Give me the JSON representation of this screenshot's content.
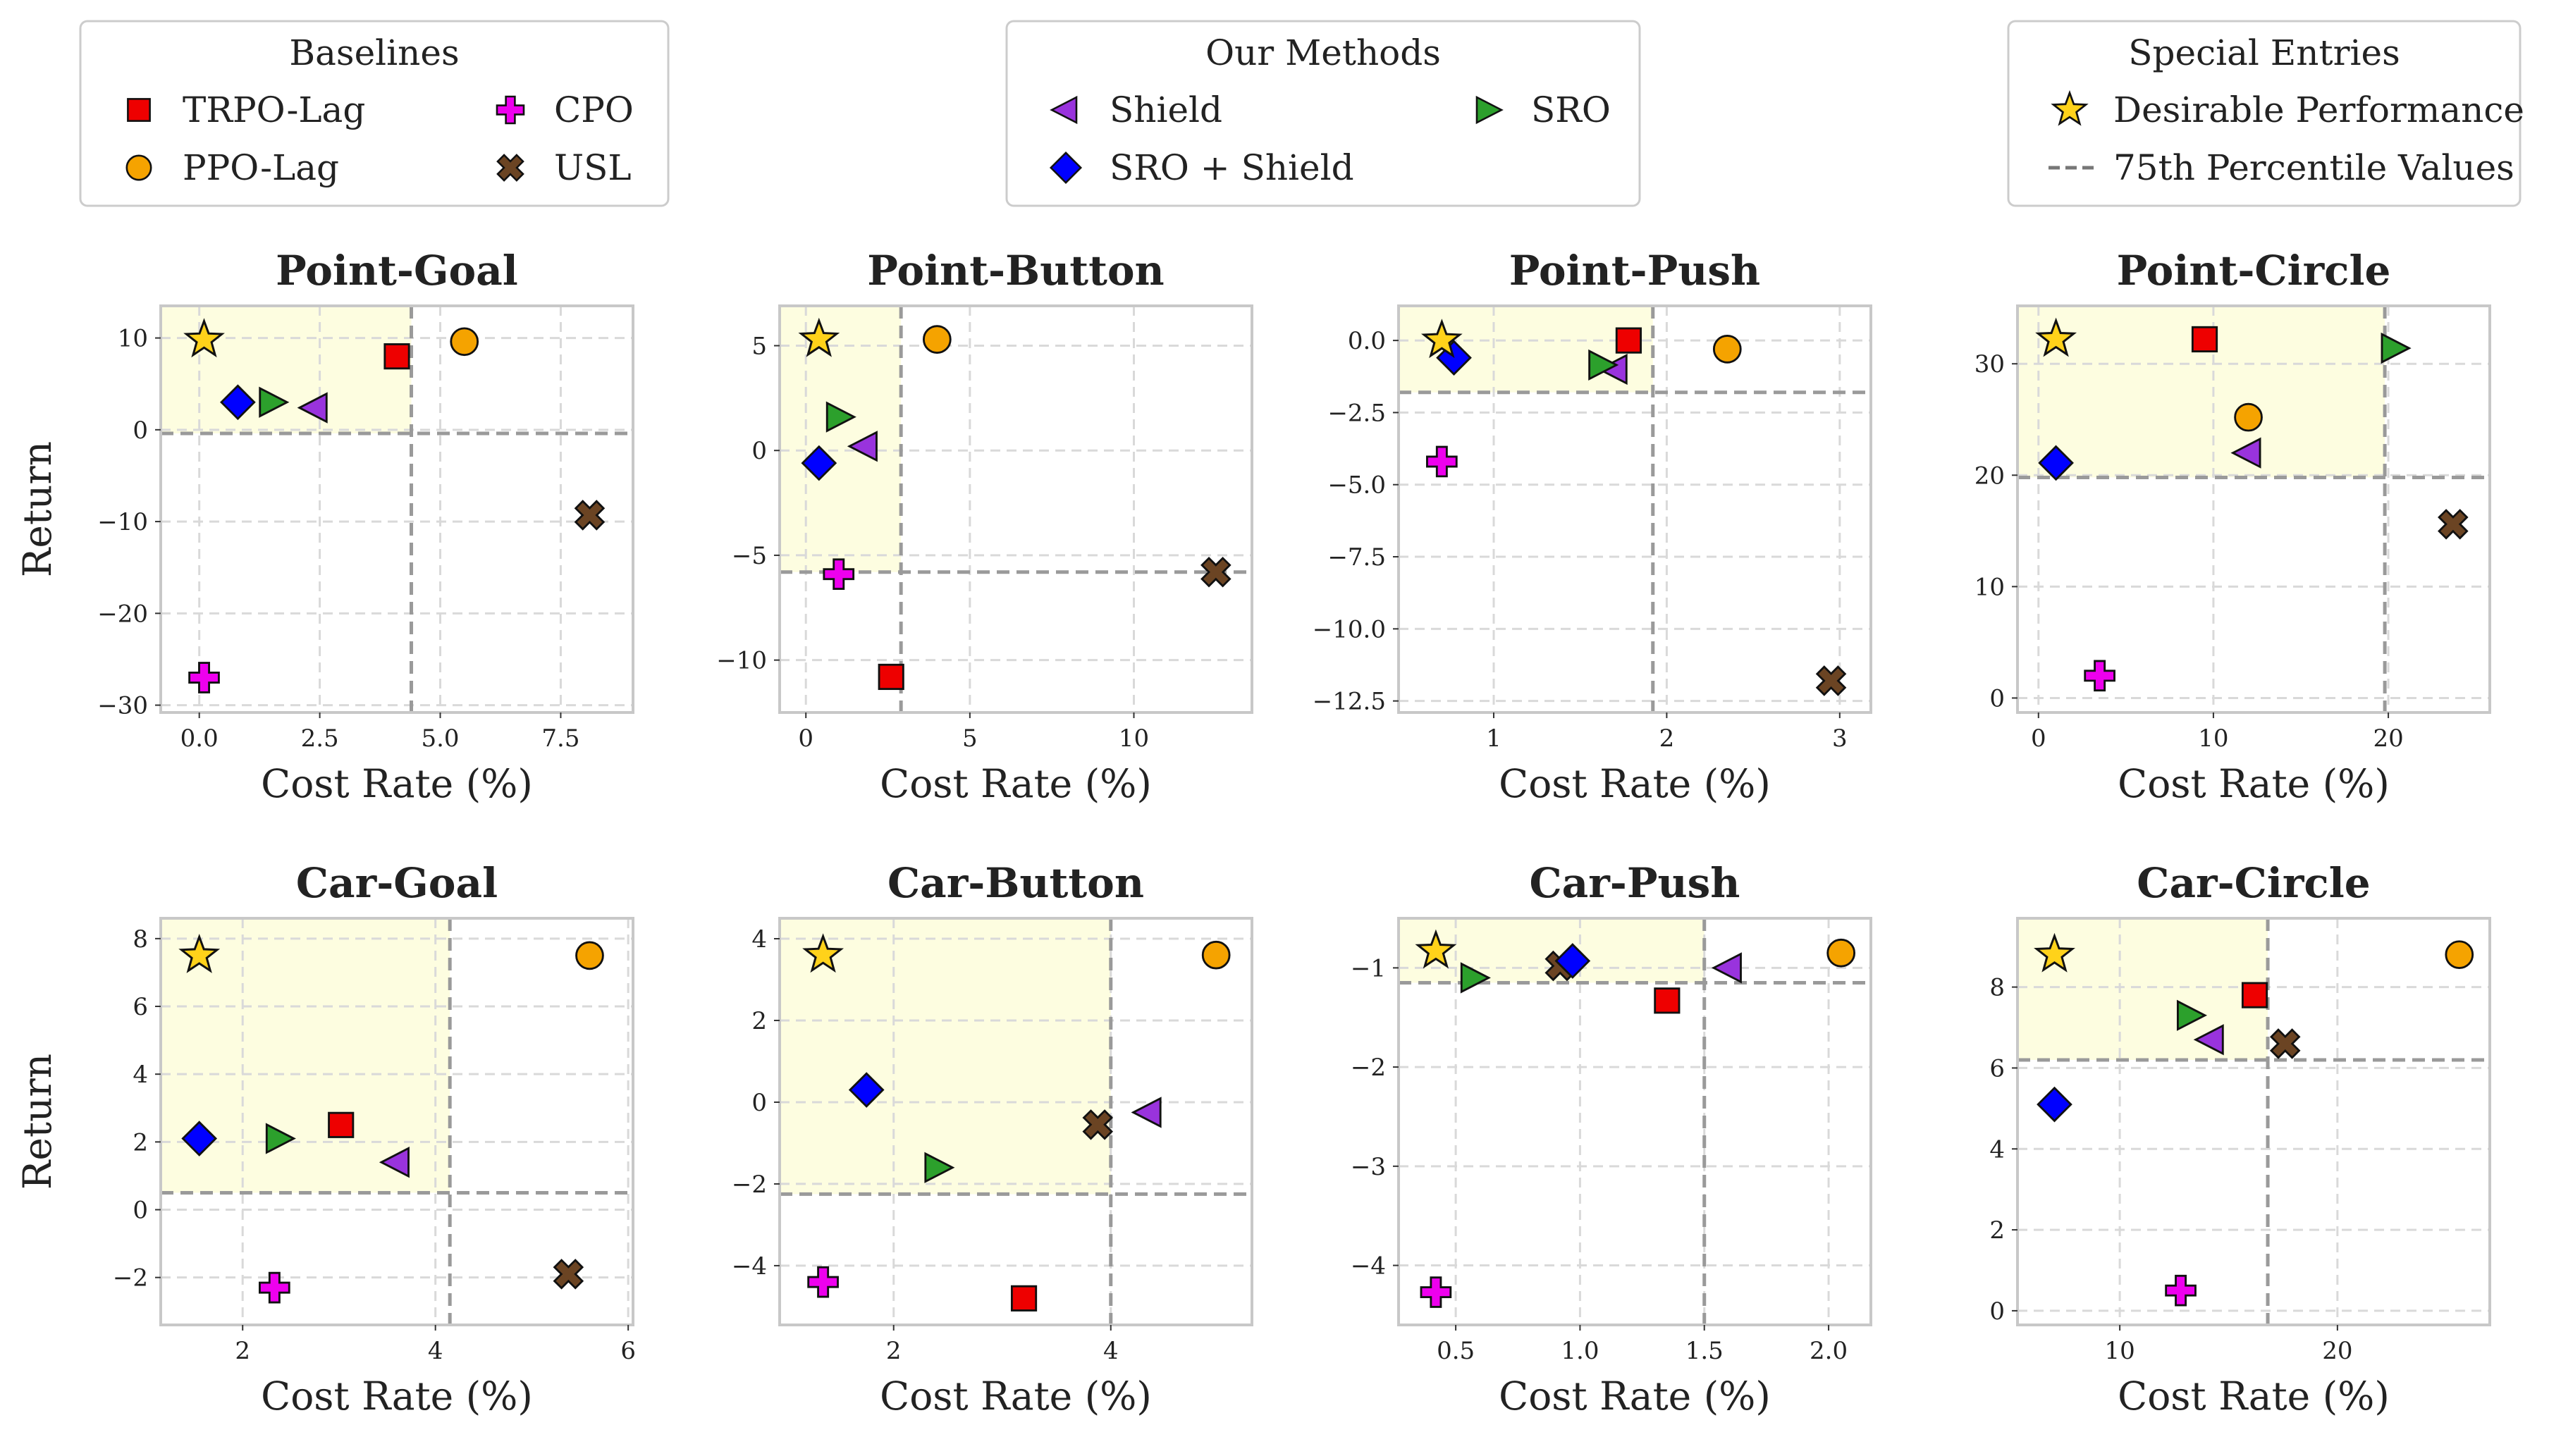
{
  "legends": {
    "baselines": {
      "title": "Baselines",
      "entries": [
        {
          "method": "trpo_lag",
          "label": "TRPO-Lag"
        },
        {
          "method": "cpo",
          "label": "CPO"
        },
        {
          "method": "ppo_lag",
          "label": "PPO-Lag"
        },
        {
          "method": "usl",
          "label": "USL"
        }
      ]
    },
    "ours": {
      "title": "Our Methods",
      "entries": [
        {
          "method": "shield",
          "label": "Shield"
        },
        {
          "method": "sro",
          "label": "SRO"
        },
        {
          "method": "sro_shield",
          "label": "SRO + Shield"
        }
      ]
    },
    "special": {
      "title": "Special Entries",
      "entries": [
        {
          "method": "desirable",
          "label": "Desirable Performance"
        },
        {
          "method": "p75",
          "label": "75th Percentile Values"
        }
      ]
    }
  },
  "styles": {
    "trpo_lag": {
      "marker": "square",
      "color": "#ee0000"
    },
    "ppo_lag": {
      "marker": "circle",
      "color": "#f5a300"
    },
    "cpo": {
      "marker": "plus",
      "color": "#ee00ee"
    },
    "usl": {
      "marker": "x",
      "color": "#6b4423"
    },
    "shield": {
      "marker": "tri-left",
      "color": "#9933dd"
    },
    "sro": {
      "marker": "tri-right",
      "color": "#2ca02c"
    },
    "sro_shield": {
      "marker": "diamond",
      "color": "#0000ff"
    },
    "desirable": {
      "marker": "star",
      "color": "#ffd21a"
    },
    "p75_line": "#9a9a9a",
    "desirable_region": "#fdfde0",
    "grid": "#d9d9d9",
    "frame": "#c8c8c8"
  },
  "chart_data": [
    {
      "type": "scatter",
      "title": "Point-Goal",
      "xlabel": "Cost Rate (%)",
      "ylabel": "Return",
      "xlim": [
        -0.8,
        9.0
      ],
      "ylim": [
        -30.8,
        13.5
      ],
      "xticks": [
        0,
        2.5,
        5,
        7.5
      ],
      "xticklabels": [
        "0.0",
        "2.5",
        "5.0",
        "7.5"
      ],
      "yticks": [
        -30,
        -20,
        -10,
        0,
        10
      ],
      "yticklabels": [
        "−30",
        "−20",
        "−10",
        "0",
        "10"
      ],
      "p75": {
        "x": 4.4,
        "y": -0.4
      },
      "points": [
        {
          "method": "desirable",
          "x": 0.1,
          "y": 9.8
        },
        {
          "method": "trpo_lag",
          "x": 4.1,
          "y": 8.0
        },
        {
          "method": "ppo_lag",
          "x": 5.5,
          "y": 9.6
        },
        {
          "method": "cpo",
          "x": 0.1,
          "y": -27.0
        },
        {
          "method": "usl",
          "x": 8.1,
          "y": -9.3
        },
        {
          "method": "shield",
          "x": 2.4,
          "y": 2.4
        },
        {
          "method": "sro",
          "x": 1.5,
          "y": 3.0
        },
        {
          "method": "sro_shield",
          "x": 0.8,
          "y": 3.0
        }
      ]
    },
    {
      "type": "scatter",
      "title": "Point-Button",
      "xlabel": "Cost Rate (%)",
      "ylabel": "",
      "xlim": [
        -0.8,
        13.6
      ],
      "ylim": [
        -12.5,
        6.9
      ],
      "xticks": [
        0,
        5,
        10
      ],
      "xticklabels": [
        "0",
        "5",
        "10"
      ],
      "yticks": [
        -10,
        -5,
        0,
        5
      ],
      "yticklabels": [
        "−10",
        "−5",
        "0",
        "5"
      ],
      "p75": {
        "x": 2.9,
        "y": -5.8
      },
      "points": [
        {
          "method": "desirable",
          "x": 0.4,
          "y": 5.3
        },
        {
          "method": "trpo_lag",
          "x": 2.6,
          "y": -10.8
        },
        {
          "method": "ppo_lag",
          "x": 4.0,
          "y": 5.3
        },
        {
          "method": "cpo",
          "x": 1.0,
          "y": -5.9
        },
        {
          "method": "usl",
          "x": 12.5,
          "y": -5.8
        },
        {
          "method": "shield",
          "x": 1.8,
          "y": 0.2
        },
        {
          "method": "sro",
          "x": 1.0,
          "y": 1.6
        },
        {
          "method": "sro_shield",
          "x": 0.4,
          "y": -0.6
        }
      ]
    },
    {
      "type": "scatter",
      "title": "Point-Push",
      "xlabel": "Cost Rate (%)",
      "ylabel": "",
      "xlim": [
        0.45,
        3.18
      ],
      "ylim": [
        -12.9,
        1.2
      ],
      "xticks": [
        1,
        2,
        3
      ],
      "xticklabels": [
        "1",
        "2",
        "3"
      ],
      "yticks": [
        -12.5,
        -10,
        -7.5,
        -5,
        -2.5,
        0
      ],
      "yticklabels": [
        "−12.5",
        "−10.0",
        "−7.5",
        "−5.0",
        "−2.5",
        "0.0"
      ],
      "p75": {
        "x": 1.92,
        "y": -1.8
      },
      "points": [
        {
          "method": "desirable",
          "x": 0.7,
          "y": 0.0
        },
        {
          "method": "trpo_lag",
          "x": 1.78,
          "y": 0.0
        },
        {
          "method": "ppo_lag",
          "x": 2.35,
          "y": -0.3
        },
        {
          "method": "cpo",
          "x": 0.7,
          "y": -4.2
        },
        {
          "method": "usl",
          "x": 2.95,
          "y": -11.8
        },
        {
          "method": "shield",
          "x": 1.7,
          "y": -1.0
        },
        {
          "method": "sro",
          "x": 1.62,
          "y": -0.85
        },
        {
          "method": "sro_shield",
          "x": 0.77,
          "y": -0.6
        }
      ]
    },
    {
      "type": "scatter",
      "title": "Point-Circle",
      "xlabel": "Cost Rate (%)",
      "ylabel": "",
      "xlim": [
        -1.2,
        25.8
      ],
      "ylim": [
        -1.3,
        35.2
      ],
      "xticks": [
        0,
        10,
        20
      ],
      "xticklabels": [
        "0",
        "10",
        "20"
      ],
      "yticks": [
        0,
        10,
        20,
        30
      ],
      "yticklabels": [
        "0",
        "10",
        "20",
        "30"
      ],
      "p75": {
        "x": 19.8,
        "y": 19.8
      },
      "points": [
        {
          "method": "desirable",
          "x": 1.0,
          "y": 32.2
        },
        {
          "method": "trpo_lag",
          "x": 9.5,
          "y": 32.2
        },
        {
          "method": "ppo_lag",
          "x": 12.0,
          "y": 25.2
        },
        {
          "method": "cpo",
          "x": 3.5,
          "y": 2.0
        },
        {
          "method": "usl",
          "x": 23.7,
          "y": 15.6
        },
        {
          "method": "shield",
          "x": 12.0,
          "y": 22.0
        },
        {
          "method": "sro",
          "x": 20.3,
          "y": 31.4
        },
        {
          "method": "sro_shield",
          "x": 1.0,
          "y": 21.1
        }
      ]
    },
    {
      "type": "scatter",
      "title": "Car-Goal",
      "xlabel": "Cost Rate (%)",
      "ylabel": "Return",
      "xlim": [
        1.15,
        6.05
      ],
      "ylim": [
        -3.4,
        8.6
      ],
      "xticks": [
        2,
        4,
        6
      ],
      "xticklabels": [
        "2",
        "4",
        "6"
      ],
      "yticks": [
        -2,
        0,
        2,
        4,
        6,
        8
      ],
      "yticklabels": [
        "−2",
        "0",
        "2",
        "4",
        "6",
        "8"
      ],
      "p75": {
        "x": 4.15,
        "y": 0.5
      },
      "points": [
        {
          "method": "desirable",
          "x": 1.55,
          "y": 7.5
        },
        {
          "method": "trpo_lag",
          "x": 3.02,
          "y": 2.5
        },
        {
          "method": "ppo_lag",
          "x": 5.6,
          "y": 7.5
        },
        {
          "method": "cpo",
          "x": 2.33,
          "y": -2.3
        },
        {
          "method": "usl",
          "x": 5.38,
          "y": -1.9
        },
        {
          "method": "shield",
          "x": 3.6,
          "y": 1.4
        },
        {
          "method": "sro",
          "x": 2.37,
          "y": 2.1
        },
        {
          "method": "sro_shield",
          "x": 1.55,
          "y": 2.1
        }
      ]
    },
    {
      "type": "scatter",
      "title": "Car-Button",
      "xlabel": "Cost Rate (%)",
      "ylabel": "",
      "xlim": [
        0.95,
        5.3
      ],
      "ylim": [
        -5.45,
        4.5
      ],
      "xticks": [
        2,
        4
      ],
      "xticklabels": [
        "2",
        "4"
      ],
      "yticks": [
        -4,
        -2,
        0,
        2,
        4
      ],
      "yticklabels": [
        "−4",
        "−2",
        "0",
        "2",
        "4"
      ],
      "p75": {
        "x": 4.0,
        "y": -2.25
      },
      "points": [
        {
          "method": "desirable",
          "x": 1.35,
          "y": 3.6
        },
        {
          "method": "trpo_lag",
          "x": 3.2,
          "y": -4.8
        },
        {
          "method": "ppo_lag",
          "x": 4.97,
          "y": 3.6
        },
        {
          "method": "cpo",
          "x": 1.35,
          "y": -4.4
        },
        {
          "method": "usl",
          "x": 3.88,
          "y": -0.55
        },
        {
          "method": "shield",
          "x": 4.35,
          "y": -0.25
        },
        {
          "method": "sro",
          "x": 2.4,
          "y": -1.6
        },
        {
          "method": "sro_shield",
          "x": 1.75,
          "y": 0.3
        }
      ]
    },
    {
      "type": "scatter",
      "title": "Car-Push",
      "xlabel": "Cost Rate (%)",
      "ylabel": "",
      "xlim": [
        0.27,
        2.17
      ],
      "ylim": [
        -4.6,
        -0.5
      ],
      "xticks": [
        0.5,
        1.0,
        1.5,
        2.0
      ],
      "xticklabels": [
        "0.5",
        "1.0",
        "1.5",
        "2.0"
      ],
      "yticks": [
        -4,
        -3,
        -2,
        -1
      ],
      "yticklabels": [
        "−4",
        "−3",
        "−2",
        "−1"
      ],
      "p75": {
        "x": 1.5,
        "y": -1.15
      },
      "points": [
        {
          "method": "desirable",
          "x": 0.42,
          "y": -0.83
        },
        {
          "method": "trpo_lag",
          "x": 1.35,
          "y": -1.33
        },
        {
          "method": "ppo_lag",
          "x": 2.05,
          "y": -0.85
        },
        {
          "method": "cpo",
          "x": 0.42,
          "y": -4.27
        },
        {
          "method": "usl",
          "x": 0.92,
          "y": -0.98
        },
        {
          "method": "shield",
          "x": 1.6,
          "y": -1.0
        },
        {
          "method": "sro",
          "x": 0.57,
          "y": -1.1
        },
        {
          "method": "sro_shield",
          "x": 0.97,
          "y": -0.93
        }
      ]
    },
    {
      "type": "scatter",
      "title": "Car-Circle",
      "xlabel": "Cost Rate (%)",
      "ylabel": "",
      "xlim": [
        5.3,
        27.0
      ],
      "ylim": [
        -0.35,
        9.7
      ],
      "xticks": [
        10,
        20
      ],
      "xticklabels": [
        "10",
        "20"
      ],
      "yticks": [
        0,
        2,
        4,
        6,
        8
      ],
      "yticklabels": [
        "0",
        "2",
        "4",
        "6",
        "8"
      ],
      "p75": {
        "x": 16.8,
        "y": 6.2
      },
      "points": [
        {
          "method": "desirable",
          "x": 7.0,
          "y": 8.8
        },
        {
          "method": "trpo_lag",
          "x": 16.2,
          "y": 7.8
        },
        {
          "method": "ppo_lag",
          "x": 25.6,
          "y": 8.8
        },
        {
          "method": "cpo",
          "x": 12.8,
          "y": 0.5
        },
        {
          "method": "usl",
          "x": 17.6,
          "y": 6.6
        },
        {
          "method": "shield",
          "x": 14.2,
          "y": 6.7
        },
        {
          "method": "sro",
          "x": 13.2,
          "y": 7.3
        },
        {
          "method": "sro_shield",
          "x": 7.0,
          "y": 5.1
        }
      ]
    }
  ]
}
